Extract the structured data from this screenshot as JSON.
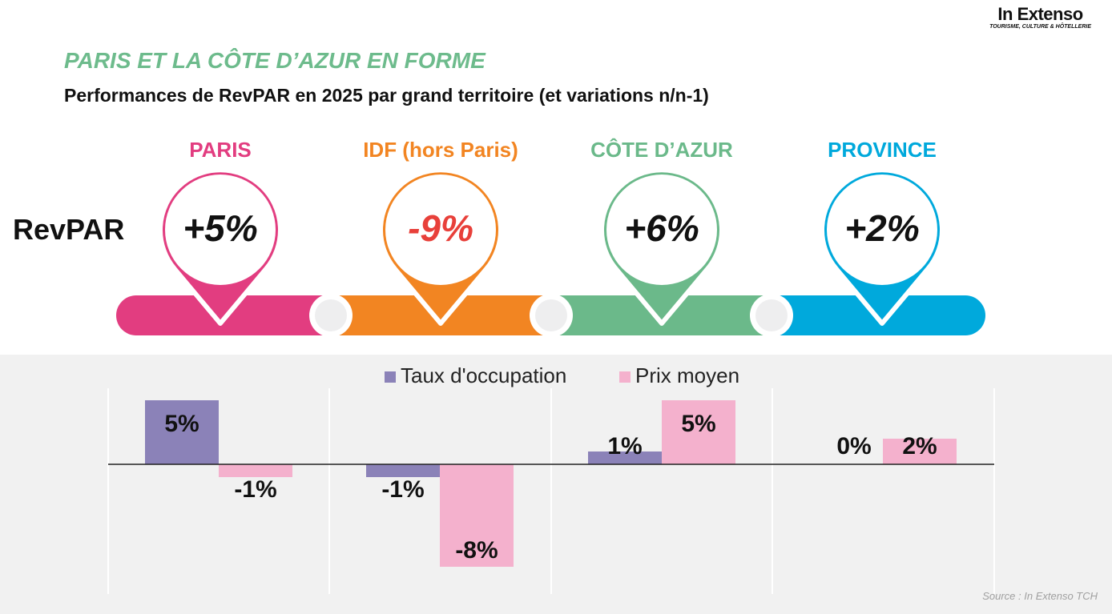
{
  "logo": {
    "name": "In Extenso",
    "tagline": "TOURISME, CULTURE & HÔTELLERIE"
  },
  "kicker": "PARIS ET LA CÔTE D’AZUR EN FORME",
  "subtitle": "Performances de RevPAR en 2025 par grand territoire (et variations n/n-1)",
  "revpar_label": "RevPAR",
  "territories": [
    {
      "name": "PARIS",
      "revpar": "+5%",
      "color": "#E23D80",
      "value_color": "#111111"
    },
    {
      "name": "IDF (hors Paris)",
      "revpar": "-9%",
      "color": "#F28522",
      "value_color": "#E8403A"
    },
    {
      "name": "CÔTE D’AZUR",
      "revpar": "+6%",
      "color": "#6BB98A",
      "value_color": "#111111"
    },
    {
      "name": "PROVINCE",
      "revpar": "+2%",
      "color": "#00A9DC",
      "value_color": "#111111"
    }
  ],
  "chart_data": {
    "type": "bar",
    "categories": [
      "PARIS",
      "IDF (hors Paris)",
      "CÔTE D’AZUR",
      "PROVINCE"
    ],
    "series": [
      {
        "name": "Taux d'occupation",
        "color": "#8B82B8",
        "values": [
          5,
          -1,
          1,
          0
        ],
        "labels": [
          "5%",
          "-1%",
          "1%",
          "0%"
        ]
      },
      {
        "name": "Prix moyen",
        "color": "#F4B1CD",
        "values": [
          -1,
          -8,
          5,
          2
        ],
        "labels": [
          "-1%",
          "-8%",
          "5%",
          "2%"
        ]
      }
    ],
    "unit": "%",
    "legend": "top",
    "grid": false
  },
  "source": "Source : In Extenso TCH"
}
